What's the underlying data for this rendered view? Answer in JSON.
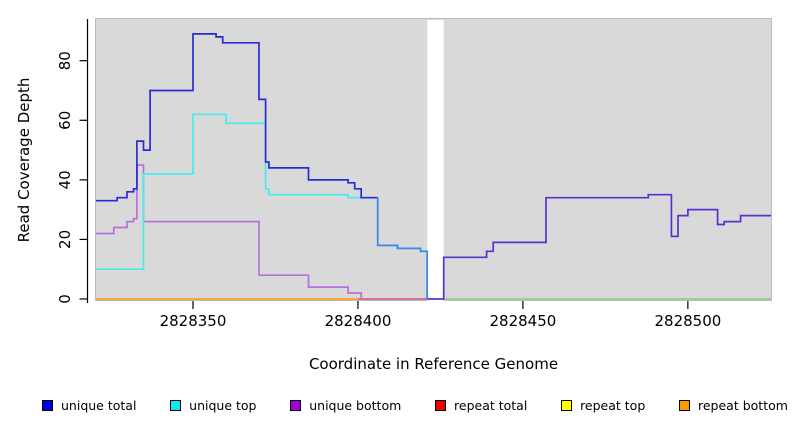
{
  "chart": {
    "ylabel": "Read Coverage Depth",
    "xlabel": "Coordinate in Reference Genome"
  },
  "chart_data": {
    "type": "line",
    "step": true,
    "title": "",
    "xlabel": "Coordinate in Reference Genome",
    "ylabel": "Read Coverage Depth",
    "xlim": [
      2828320.6,
      2828525.2
    ],
    "ylim": [
      0,
      94
    ],
    "x_ticks": [
      2828350,
      2828400,
      2828450,
      2828500
    ],
    "y_ticks": [
      0,
      20,
      40,
      60,
      80
    ],
    "panel_bg": "#d9d9d9",
    "panel_border": "#bcbcbc",
    "axis_color": "#000000",
    "grid": false,
    "legend_position": "bottom",
    "gap_region": {
      "x_from": 2828421,
      "x_to": 2828426
    },
    "series": [
      {
        "name": "unique bottom",
        "legend_color": "#9d00d9",
        "above_gap": false,
        "runs": [
          {
            "color": "#b671dd",
            "points": [
              [
                2828320.6,
                22
              ],
              [
                2828326,
                24
              ],
              [
                2828330,
                26
              ],
              [
                2828332,
                27
              ],
              [
                2828333,
                45
              ],
              [
                2828335,
                26
              ],
              [
                2828370,
                8
              ],
              [
                2828385,
                4
              ],
              [
                2828397,
                2
              ],
              [
                2828401,
                0
              ],
              [
                2828421,
                0
              ]
            ]
          }
        ]
      },
      {
        "name": "unique top",
        "legend_color": "#00eeee",
        "above_gap": false,
        "runs": [
          {
            "color": "#45ecec",
            "points": [
              [
                2828320.6,
                10
              ],
              [
                2828335,
                42
              ],
              [
                2828350,
                62
              ],
              [
                2828360,
                59
              ],
              [
                2828372,
                37
              ],
              [
                2828373,
                35
              ],
              [
                2828397,
                34
              ],
              [
                2828406,
                18
              ],
              [
                2828412,
                17
              ],
              [
                2828419,
                16
              ],
              [
                2828421,
                0
              ]
            ]
          }
        ]
      },
      {
        "name": "repeat bottom",
        "legend_color": "#ff9800",
        "above_gap": false,
        "runs": [
          {
            "color": "#ff9d23",
            "points": [
              [
                2828320.6,
                0
              ],
              [
                2828400,
                0
              ]
            ]
          }
        ]
      },
      {
        "name": "repeat total",
        "legend_color": "#ee0000",
        "above_gap": false,
        "runs": [
          {
            "color": "#d96c85",
            "points": [
              [
                2828400,
                0
              ],
              [
                2828421,
                0
              ]
            ]
          }
        ]
      },
      {
        "name": "repeat top",
        "legend_color": "#ffff00",
        "above_gap": false,
        "runs": [
          {
            "color": "#8fce8f",
            "points": [
              [
                2828426,
                0
              ],
              [
                2828525.2,
                0
              ]
            ]
          }
        ]
      },
      {
        "name": "unique total",
        "legend_color": "#0000ee",
        "above_gap": true,
        "runs": [
          {
            "color": "#2b2bd5",
            "points": [
              [
                2828320.6,
                33
              ],
              [
                2828327,
                34
              ],
              [
                2828330,
                36
              ],
              [
                2828332,
                37
              ],
              [
                2828333,
                53
              ],
              [
                2828335,
                50
              ],
              [
                2828337,
                70
              ],
              [
                2828350,
                89
              ],
              [
                2828357,
                88
              ],
              [
                2828359,
                86
              ],
              [
                2828370,
                67
              ],
              [
                2828372,
                46
              ],
              [
                2828373,
                44
              ],
              [
                2828385,
                40
              ],
              [
                2828397,
                39
              ],
              [
                2828399,
                37
              ],
              [
                2828401,
                34
              ],
              [
                2828406,
                34
              ]
            ]
          },
          {
            "color": "#4285e8",
            "points": [
              [
                2828406,
                34
              ],
              [
                2828406,
                18
              ],
              [
                2828412,
                17
              ],
              [
                2828419,
                16
              ],
              [
                2828421,
                16
              ],
              [
                2828421,
                0
              ]
            ]
          },
          {
            "color": "#5a30d5",
            "points": [
              [
                2828421,
                0
              ],
              [
                2828426,
                14
              ],
              [
                2828439,
                16
              ],
              [
                2828441,
                19
              ],
              [
                2828457,
                34
              ],
              [
                2828488,
                35
              ],
              [
                2828495,
                21
              ],
              [
                2828497,
                28
              ],
              [
                2828500,
                30
              ],
              [
                2828509,
                25
              ],
              [
                2828511,
                26
              ],
              [
                2828516,
                28
              ],
              [
                2828525.2,
                28
              ]
            ]
          }
        ]
      }
    ],
    "legend_items": [
      {
        "label": "unique total",
        "color": "#0000ee"
      },
      {
        "label": "unique top",
        "color": "#00eeee"
      },
      {
        "label": "unique bottom",
        "color": "#9d00d9"
      },
      {
        "label": "repeat total",
        "color": "#ee0000"
      },
      {
        "label": "repeat top",
        "color": "#ffff00"
      },
      {
        "label": "repeat bottom",
        "color": "#ff9800"
      }
    ]
  }
}
